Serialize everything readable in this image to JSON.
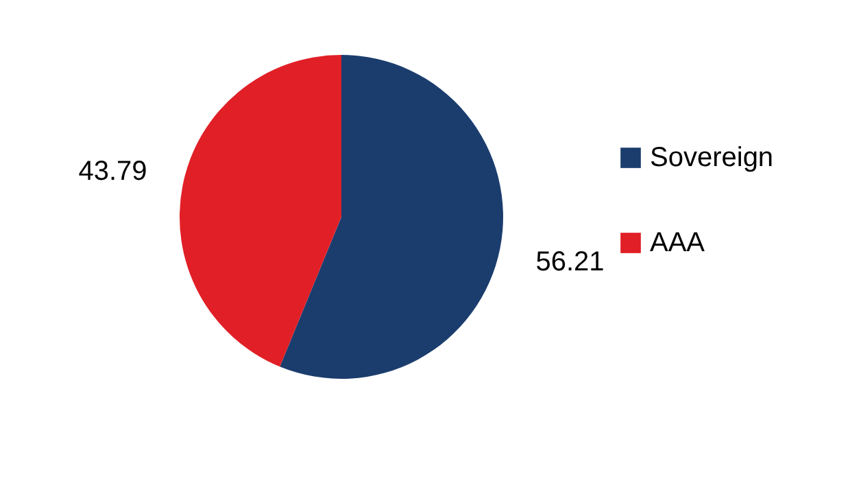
{
  "chart_data": {
    "type": "pie",
    "categories": [
      "Sovereign",
      "AAA"
    ],
    "values": [
      56.21,
      43.79
    ],
    "colors": [
      "#1b3d6e",
      "#e11f26"
    ],
    "data_labels": true,
    "legend": "right"
  }
}
